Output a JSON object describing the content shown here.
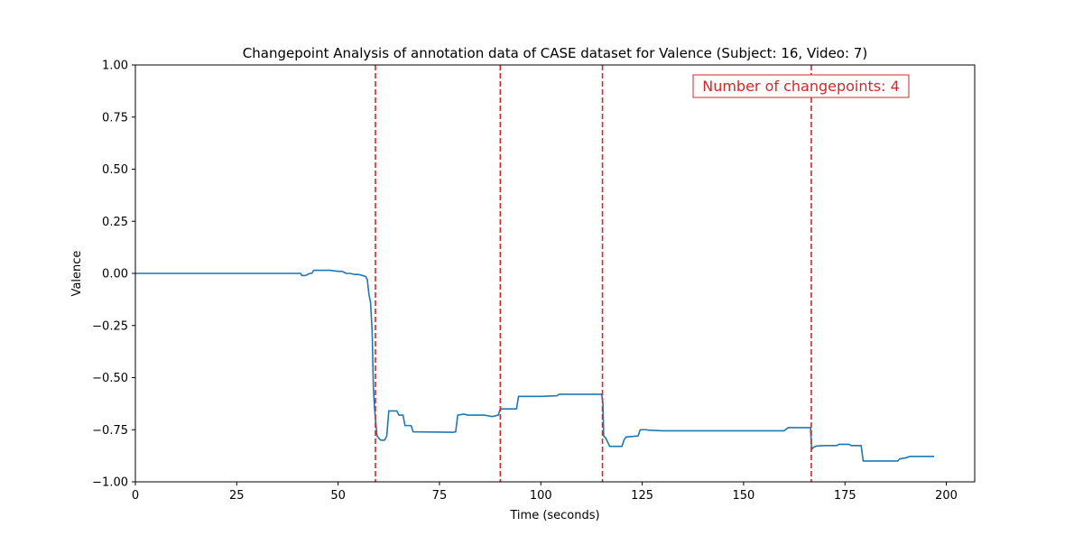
{
  "chart_data": {
    "type": "line",
    "title": "Changepoint Analysis of annotation data of CASE dataset for Valence (Subject: 16, Video: 7)",
    "xlabel": "Time (seconds)",
    "ylabel": "Valence",
    "xlim": [
      0,
      207
    ],
    "ylim": [
      -1.0,
      1.0
    ],
    "x_ticks": [
      0,
      25,
      50,
      75,
      100,
      125,
      150,
      175,
      200
    ],
    "y_ticks": [
      1.0,
      0.75,
      0.5,
      0.25,
      0.0,
      -0.25,
      -0.5,
      -0.75,
      -1.0
    ],
    "x_tick_labels": [
      "0",
      "25",
      "50",
      "75",
      "100",
      "125",
      "150",
      "175",
      "200"
    ],
    "y_tick_labels": [
      "1.00",
      "0.75",
      "0.50",
      "0.25",
      "0.00",
      "−0.25",
      "−0.50",
      "−0.75",
      "−1.00"
    ],
    "grid": false,
    "series": [
      {
        "color": "#1f77b4",
        "x": [
          0,
          40.8,
          41.0,
          42.0,
          43.0,
          43.5,
          44.0,
          48.0,
          50.0,
          51.0,
          52.0,
          53.0,
          54.0,
          55.0,
          56.0,
          56.8,
          57.2,
          57.6,
          58.0,
          58.4,
          58.7,
          59.0,
          59.3,
          59.6,
          60.0,
          60.5,
          61.0,
          61.5,
          62.0,
          62.5,
          63.0,
          64.5,
          65.0,
          66.0,
          66.5,
          68.0,
          68.5,
          78.0,
          78.5,
          79.0,
          79.5,
          81.0,
          82.0,
          86.0,
          87.0,
          88.0,
          89.5,
          90.0,
          94.0,
          94.5,
          96.0,
          100.0,
          104.0,
          104.5,
          115.0,
          115.3,
          115.5,
          116.0,
          117.0,
          120.0,
          120.5,
          121.0,
          124.0,
          124.5,
          126.0,
          126.5,
          130.0,
          160.0,
          161.0,
          166.5,
          166.8,
          167.2,
          168.0,
          170.0,
          173.0,
          173.5,
          176.0,
          176.5,
          179.0,
          179.5,
          180.0,
          188.0,
          188.5,
          190.0,
          191.0,
          197.0
        ],
        "y": [
          0.0,
          0.0,
          -0.01,
          -0.01,
          0.0,
          0.0,
          0.015,
          0.015,
          0.01,
          0.01,
          0.0,
          0.0,
          -0.005,
          -0.005,
          -0.01,
          -0.015,
          -0.03,
          -0.1,
          -0.14,
          -0.28,
          -0.55,
          -0.65,
          -0.72,
          -0.78,
          -0.79,
          -0.8,
          -0.8,
          -0.8,
          -0.78,
          -0.66,
          -0.66,
          -0.66,
          -0.68,
          -0.68,
          -0.73,
          -0.73,
          -0.76,
          -0.762,
          -0.762,
          -0.76,
          -0.68,
          -0.675,
          -0.68,
          -0.68,
          -0.683,
          -0.687,
          -0.68,
          -0.65,
          -0.65,
          -0.59,
          -0.59,
          -0.59,
          -0.587,
          -0.58,
          -0.58,
          -0.62,
          -0.78,
          -0.79,
          -0.83,
          -0.83,
          -0.8,
          -0.785,
          -0.78,
          -0.75,
          -0.75,
          -0.752,
          -0.755,
          -0.755,
          -0.74,
          -0.74,
          -0.845,
          -0.835,
          -0.828,
          -0.826,
          -0.826,
          -0.82,
          -0.82,
          -0.826,
          -0.826,
          -0.9,
          -0.9,
          -0.9,
          -0.89,
          -0.885,
          -0.878,
          -0.878
        ]
      }
    ],
    "changepoints": [
      59.2,
      90.0,
      115.2,
      166.7
    ],
    "changepoint_color": "#d62728",
    "annotation": {
      "text": "Number of changepoints: 4",
      "color": "#d62728"
    }
  }
}
